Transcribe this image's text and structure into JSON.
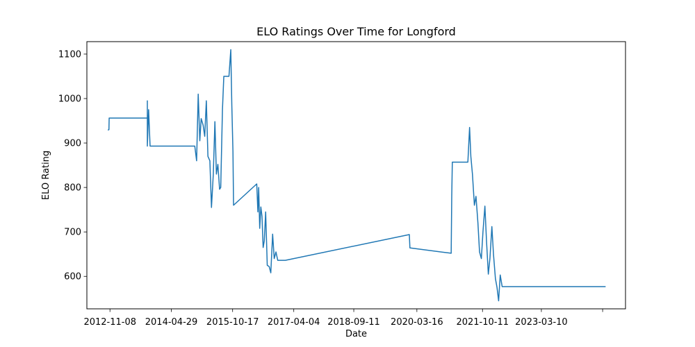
{
  "chart_data": {
    "type": "line",
    "title": "ELO Ratings Over Time for Longford",
    "xlabel": "Date",
    "ylabel": "ELO Rating",
    "x_tick_labels": [
      "2012-11-08",
      "2014-04-29",
      "2015-10-17",
      "2017-04-04",
      "2018-09-11",
      "2020-03-16",
      "2021-10-11",
      "2023-03-10",
      ""
    ],
    "x_ticks": [
      "2012-11-08",
      "2014-04-29",
      "2015-10-17",
      "2017-04-04",
      "2018-09-11",
      "2020-03-16",
      "2021-10-11",
      "2023-03-10",
      "2024-08-27"
    ],
    "y_ticks": [
      600,
      700,
      800,
      900,
      1000,
      1100
    ],
    "xlim": [
      "2012-04-20",
      "2025-03-15"
    ],
    "ylim": [
      527,
      1128
    ],
    "grid": false,
    "color": "#1f77b4",
    "series": [
      {
        "x": [
          "2012-10-20",
          "2012-10-30",
          "2012-11-01",
          "2013-10-01",
          "2013-10-01",
          "2013-10-01",
          "2013-10-12",
          "2013-10-25",
          "2014-11-20",
          "2014-12-06",
          "2014-12-20",
          "2015-01-03",
          "2015-01-15",
          "2015-02-01",
          "2015-02-15",
          "2015-03-01",
          "2015-03-15",
          "2015-04-01",
          "2015-04-15",
          "2015-05-01",
          "2015-05-15",
          "2015-05-28",
          "2015-06-10",
          "2015-06-25",
          "2015-07-05",
          "2015-07-20",
          "2015-08-01",
          "2015-08-10",
          "2015-08-20",
          "2015-09-01",
          "2015-09-15",
          "2015-10-01",
          "2015-10-10",
          "2015-10-20",
          "2015-10-25",
          "2016-05-15",
          "2016-05-25",
          "2016-06-01",
          "2016-06-10",
          "2016-06-20",
          "2016-06-30",
          "2016-07-10",
          "2016-07-20",
          "2016-08-01",
          "2016-08-15",
          "2016-09-01",
          "2016-09-15",
          "2016-10-01",
          "2016-10-15",
          "2016-10-30",
          "2016-11-15",
          "2016-12-01",
          "2016-12-15",
          "2017-01-01",
          "2017-01-20",
          "2020-01-10",
          "2020-01-15",
          "2020-01-18",
          "2021-01-10",
          "2021-01-15",
          "2021-01-20",
          "2021-02-15",
          "2021-06-05",
          "2021-06-20",
          "2021-07-01",
          "2021-07-15",
          "2021-08-01",
          "2021-08-15",
          "2021-09-01",
          "2021-09-15",
          "2021-10-01",
          "2021-10-15",
          "2021-11-01",
          "2021-11-15",
          "2021-12-01",
          "2021-12-15",
          "2022-01-01",
          "2022-01-15",
          "2022-02-01",
          "2022-02-15",
          "2022-03-01",
          "2022-03-15",
          "2022-04-01",
          "2022-04-10",
          "2022-04-20",
          "2024-09-22"
        ],
        "y": [
          929,
          930,
          956,
          956,
          995,
          893,
          975,
          893,
          893,
          860,
          1010,
          905,
          955,
          940,
          915,
          995,
          870,
          860,
          755,
          830,
          948,
          830,
          852,
          796,
          800,
          975,
          1050,
          1050,
          1050,
          1050,
          1050,
          1110,
          985,
          880,
          760,
          808,
          745,
          800,
          708,
          756,
          735,
          665,
          680,
          745,
          625,
          622,
          608,
          695,
          640,
          655,
          636,
          636,
          636,
          636,
          636,
          694,
          664,
          664,
          652,
          781,
          857,
          857,
          857,
          935,
          870,
          830,
          760,
          780,
          720,
          655,
          640,
          700,
          758,
          680,
          605,
          640,
          712,
          650,
          595,
          575,
          545,
          603,
          577,
          577,
          577,
          577
        ]
      }
    ]
  }
}
